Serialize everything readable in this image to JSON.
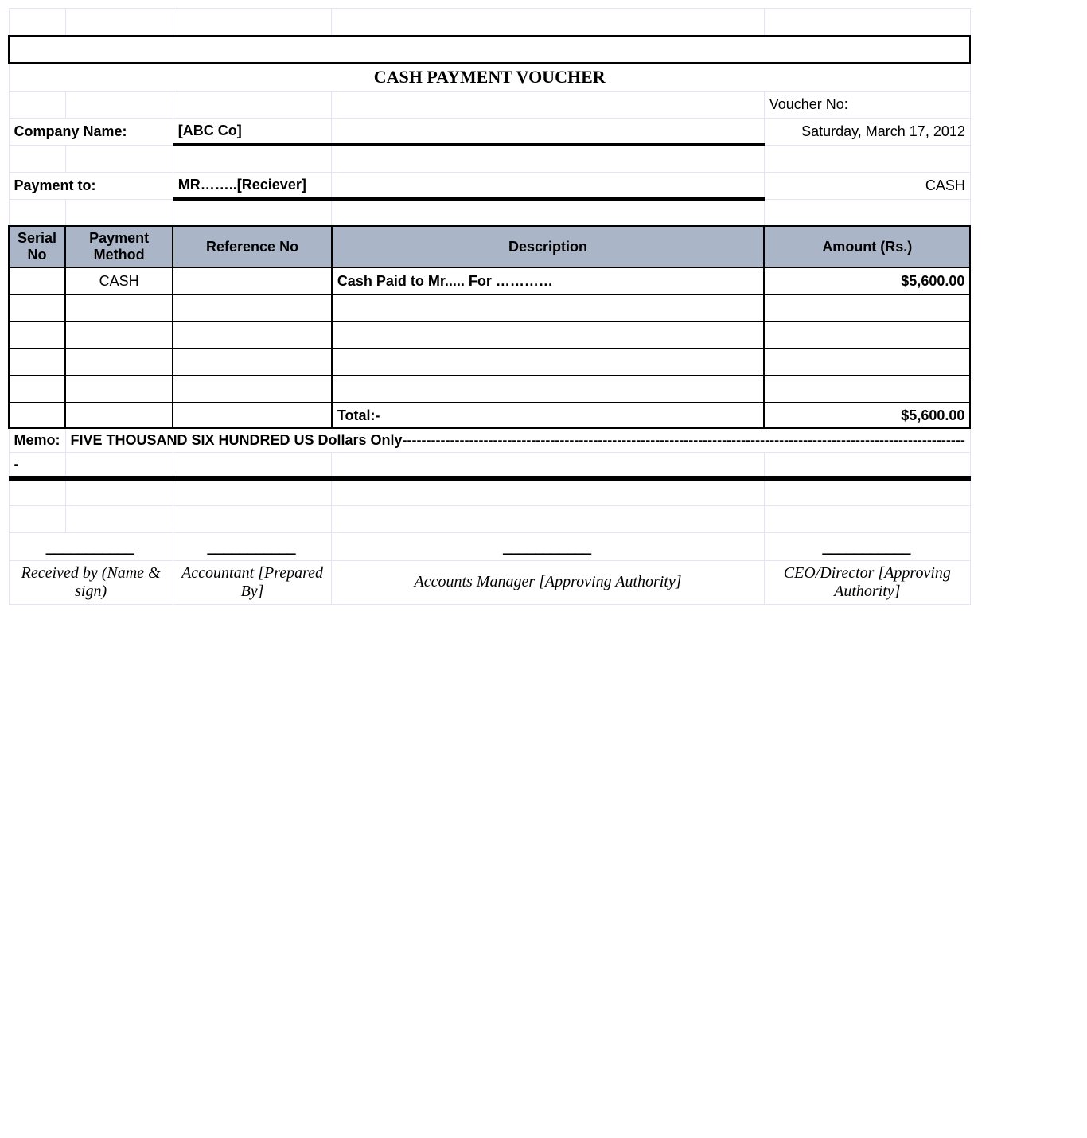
{
  "title": "CASH PAYMENT VOUCHER",
  "voucher_no_label": "Voucher No:",
  "company_label": "Company Name:",
  "company_value": "[ABC Co]",
  "date": "Saturday, March 17, 2012",
  "payment_to_label": "Payment to:",
  "payment_to_value": "MR……..[Reciever]",
  "payment_type": "CASH",
  "columns": {
    "serial": "Serial No",
    "method": "Payment Method",
    "ref": "Reference No",
    "desc": "Description",
    "amount": "Amount (Rs.)"
  },
  "row1": {
    "method": "CASH",
    "desc": "Cash Paid to Mr..... For …………",
    "amount": "$5,600.00"
  },
  "total_label": "Total:-",
  "total_amount": "$5,600.00",
  "memo_label": "Memo:",
  "memo_value": "FIVE THOUSAND SIX HUNDRED US Dollars Only----------------------------------------------------------------------------------------------------------------------",
  "dash": "-",
  "sig_line": "___________",
  "signatures": {
    "received": "Received by       (Name & sign)",
    "accountant": "Accountant [Prepared By]",
    "manager": "Accounts Manager                               [Approving Authority]",
    "ceo": "CEO/Director [Approving Authority]"
  }
}
